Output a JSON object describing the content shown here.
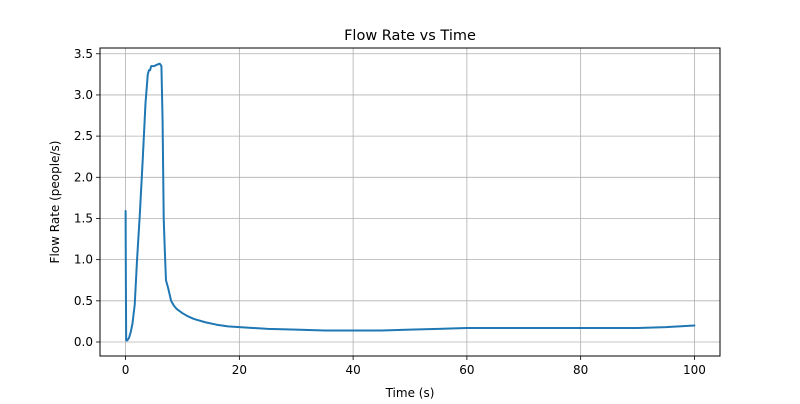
{
  "chart_data": {
    "type": "line",
    "title": "Flow Rate vs Time",
    "xlabel": "Time (s)",
    "ylabel": "Flow Rate (people/s)",
    "xlim": [
      -4.5,
      104.5
    ],
    "ylim": [
      -0.17,
      3.57
    ],
    "xticks": [
      0,
      20,
      40,
      60,
      80,
      100
    ],
    "yticks": [
      0.0,
      0.5,
      1.0,
      1.5,
      2.0,
      2.5,
      3.0,
      3.5
    ],
    "xtick_labels": [
      "0",
      "20",
      "40",
      "60",
      "80",
      "100"
    ],
    "ytick_labels": [
      "0.0",
      "0.5",
      "1.0",
      "1.5",
      "2.0",
      "2.5",
      "3.0",
      "3.5"
    ],
    "grid": true,
    "legend": "none",
    "series_color": "#1f77b4",
    "series": [
      {
        "x": [
          0,
          0.05,
          0.1,
          0.3,
          0.6,
          0.9,
          1.2,
          1.6,
          2.0,
          2.5,
          3.0,
          3.5,
          3.9,
          4.1,
          4.3,
          4.5,
          4.8,
          5.0,
          5.3,
          5.6,
          6.0,
          6.3,
          6.5,
          6.7,
          6.9,
          7.1,
          7.5,
          8.0,
          8.5,
          9.0,
          10,
          11,
          12,
          14,
          16,
          18,
          20,
          25,
          30,
          35,
          40,
          45,
          50,
          55,
          60,
          65,
          70,
          75,
          80,
          85,
          90,
          95,
          100
        ],
        "y": [
          1.59,
          0.7,
          0.02,
          0.02,
          0.05,
          0.12,
          0.22,
          0.45,
          0.98,
          1.55,
          2.2,
          2.9,
          3.25,
          3.3,
          3.3,
          3.35,
          3.35,
          3.35,
          3.36,
          3.37,
          3.38,
          3.35,
          2.7,
          1.5,
          1.1,
          0.75,
          0.65,
          0.5,
          0.44,
          0.4,
          0.35,
          0.31,
          0.28,
          0.24,
          0.21,
          0.19,
          0.18,
          0.16,
          0.15,
          0.14,
          0.14,
          0.14,
          0.15,
          0.16,
          0.17,
          0.17,
          0.17,
          0.17,
          0.17,
          0.17,
          0.17,
          0.18,
          0.2
        ]
      }
    ]
  }
}
